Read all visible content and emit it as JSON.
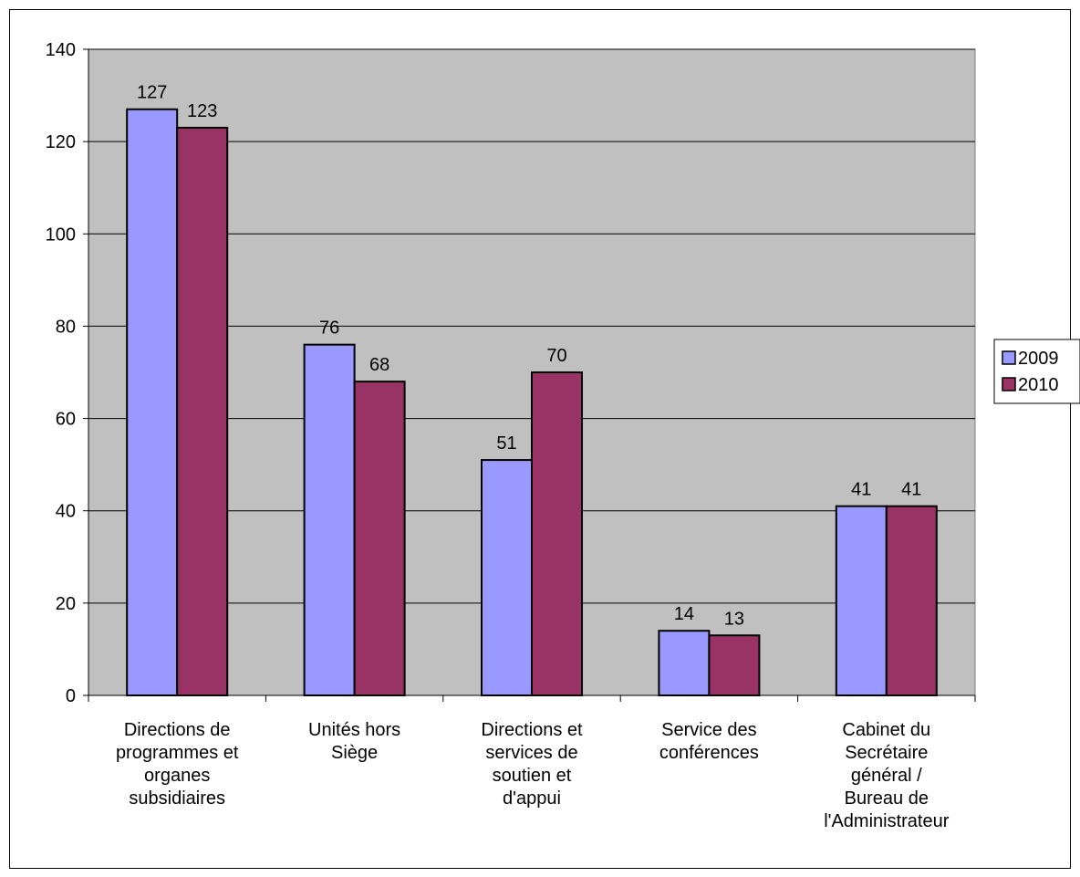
{
  "chart_data": {
    "type": "bar",
    "categories": [
      [
        "Directions de",
        "programmes et",
        "organes",
        "subsidiaires"
      ],
      [
        "Unités hors",
        "Siège"
      ],
      [
        "Directions et",
        "services de",
        "soutien et",
        "d'appui"
      ],
      [
        "Service des",
        "conférences"
      ],
      [
        "Cabinet du",
        "Secrétaire",
        "général /",
        "Bureau de",
        "l'Administrateur"
      ]
    ],
    "series": [
      {
        "name": "2009",
        "values": [
          127,
          76,
          51,
          14,
          41
        ],
        "color": "#9999FF"
      },
      {
        "name": "2010",
        "values": [
          123,
          68,
          70,
          13,
          41
        ],
        "color": "#993366"
      }
    ],
    "ylim": [
      0,
      140
    ],
    "yticks": [
      0,
      20,
      40,
      60,
      80,
      100,
      120,
      140
    ],
    "grid": true,
    "plot_background": "#C0C0C0",
    "legend_position": "right",
    "title": "",
    "xlabel": "",
    "ylabel": ""
  }
}
